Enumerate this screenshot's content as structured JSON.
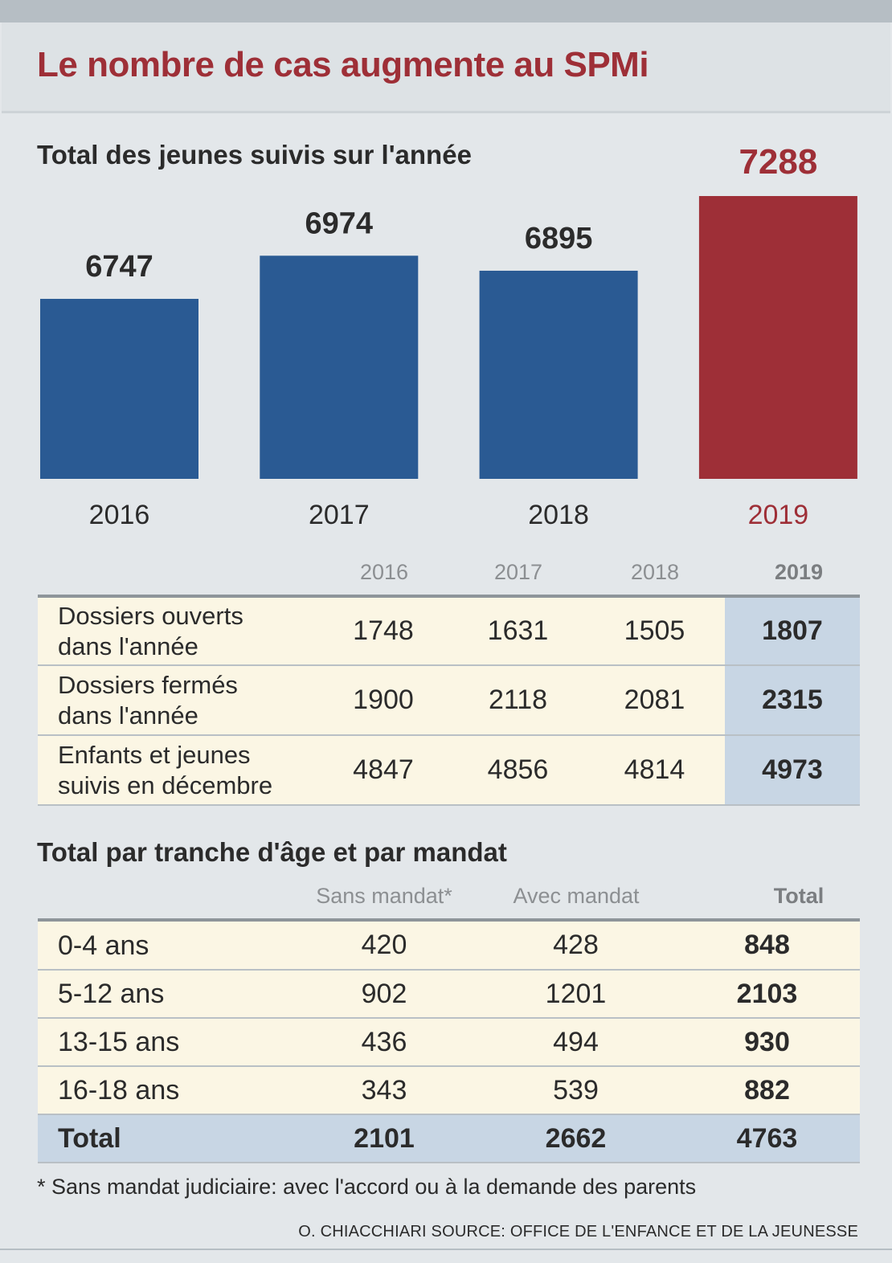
{
  "title": "Le nombre de cas augmente au SPMi",
  "chart_data": {
    "type": "bar",
    "title": "Total des jeunes suivis sur l'année",
    "categories": [
      "2016",
      "2017",
      "2018",
      "2019"
    ],
    "values": [
      6747,
      6974,
      6895,
      7288
    ],
    "ylim": [
      5800,
      7400
    ],
    "highlight_index": 3,
    "colors": {
      "bar": "#2a5a93",
      "highlight": "#9e2f37",
      "label": "#2b2b2b",
      "highlight_label": "#9e2f37"
    }
  },
  "dossiers_table": {
    "columns": [
      "2016",
      "2017",
      "2018",
      "2019"
    ],
    "rows": [
      {
        "label_line1": "Dossiers ouverts",
        "label_line2": "dans l'année",
        "values": [
          "1748",
          "1631",
          "1505",
          "1807"
        ]
      },
      {
        "label_line1": "Dossiers fermés",
        "label_line2": "dans l'année",
        "values": [
          "1900",
          "2118",
          "2081",
          "2315"
        ]
      },
      {
        "label_line1": "Enfants et jeunes",
        "label_line2": "suivis en décembre",
        "values": [
          "4847",
          "4856",
          "4814",
          "4973"
        ]
      }
    ]
  },
  "age_section_title": "Total par tranche d'âge et par mandat",
  "age_table": {
    "columns": [
      "Sans mandat*",
      "Avec mandat",
      "Total"
    ],
    "rows": [
      {
        "label": "0-4 ans",
        "values": [
          "420",
          "428",
          "848"
        ]
      },
      {
        "label": "5-12 ans",
        "values": [
          "902",
          "1201",
          "2103"
        ]
      },
      {
        "label": "13-15 ans",
        "values": [
          "436",
          "494",
          "930"
        ]
      },
      {
        "label": "16-18 ans",
        "values": [
          "343",
          "539",
          "882"
        ]
      }
    ],
    "total": {
      "label": "Total",
      "values": [
        "2101",
        "2662",
        "4763"
      ]
    }
  },
  "footnote": "* Sans mandat judiciaire: avec l'accord ou à la demande des parents",
  "credit": "O. CHIACCHIARI   SOURCE: OFFICE DE L'ENFANCE ET DE LA JEUNESSE"
}
